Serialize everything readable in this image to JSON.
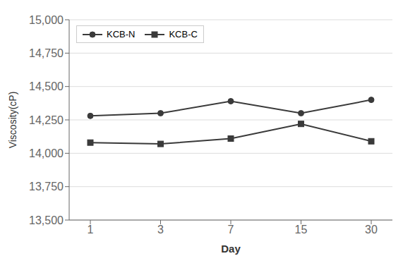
{
  "chart_data": {
    "type": "line",
    "categories": [
      "1",
      "3",
      "7",
      "15",
      "30"
    ],
    "series": [
      {
        "name": "KCB-N",
        "color": "#3a3a3a",
        "marker": "circle",
        "values": [
          14280,
          14300,
          14390,
          14300,
          14400
        ]
      },
      {
        "name": "KCB-C",
        "color": "#3a3a3a",
        "marker": "square",
        "values": [
          14080,
          14070,
          14110,
          14220,
          14090
        ]
      }
    ],
    "x_label": "Day",
    "y_label": "Viscosity(cP)",
    "ylim": [
      13500,
      15000
    ],
    "yticks": [
      {
        "value": 13500,
        "label": "13,500"
      },
      {
        "value": 13750,
        "label": "13,750"
      },
      {
        "value": 14000,
        "label": "14,000"
      },
      {
        "value": 14250,
        "label": "14,250"
      },
      {
        "value": 14500,
        "label": "14,500"
      },
      {
        "value": 14750,
        "label": "14,750"
      },
      {
        "value": 15000,
        "label": "15,000"
      }
    ],
    "grid": true,
    "legend": "upper left"
  }
}
